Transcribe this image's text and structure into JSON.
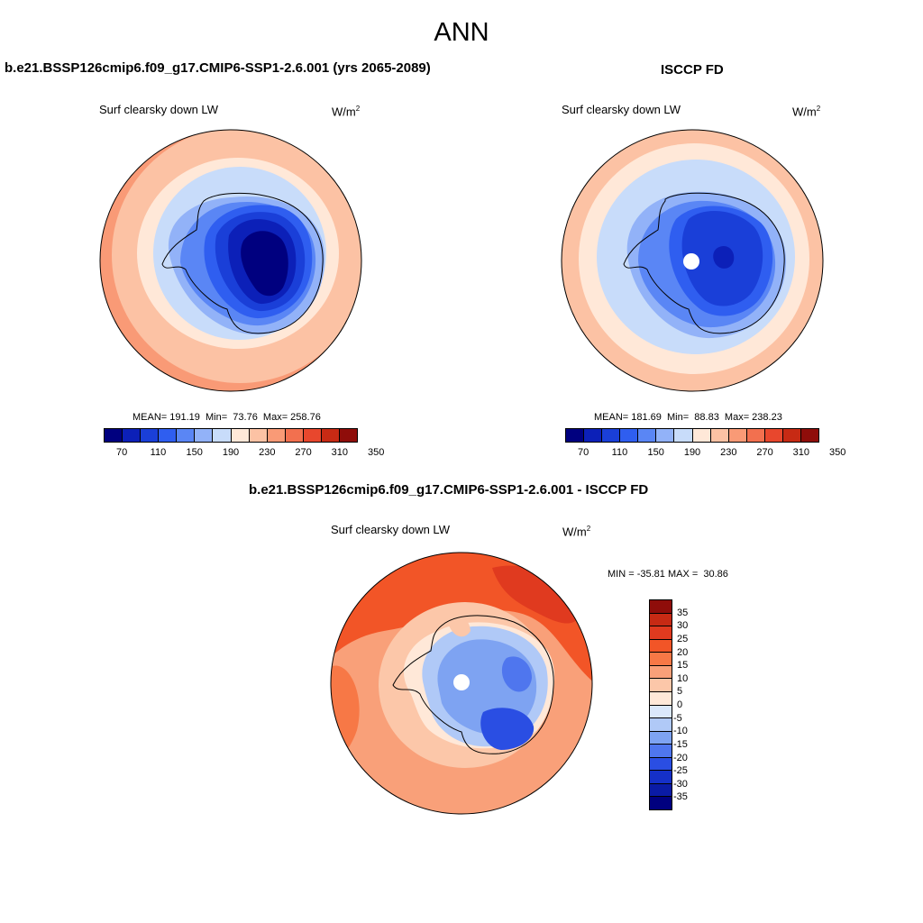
{
  "figure": {
    "title": "ANN"
  },
  "panels": [
    {
      "title": "b.e21.BSSP126cmip6.f09_g17.CMIP6-SSP1-2.6.001 (yrs 2065-2089)",
      "variable": "Surf clearsky down LW",
      "units_base": "W/m",
      "units_exp": "2",
      "stats": "MEAN= 191.19  Min=  73.76  Max= 258.76"
    },
    {
      "title": "ISCCP FD",
      "variable": "Surf clearsky down LW",
      "units_base": "W/m",
      "units_exp": "2",
      "stats": "MEAN= 181.69  Min=  88.83  Max= 238.23"
    },
    {
      "title": "b.e21.BSSP126cmip6.f09_g17.CMIP6-SSP1-2.6.001 - ISCCP FD",
      "variable": "Surf clearsky down LW",
      "units_base": "W/m",
      "units_exp": "2",
      "stats": "MIN = -35.81 MAX =  30.86"
    }
  ],
  "colorbar_abs": {
    "colors": [
      "#00007f",
      "#0c20b8",
      "#1a3fd8",
      "#2f5ef0",
      "#5a86f5",
      "#92b2f8",
      "#c8dcfa",
      "#ffe8d8",
      "#fcc2a4",
      "#f99a76",
      "#f2704f",
      "#e8472d",
      "#c72a14",
      "#8f0d0a"
    ],
    "tick_labels": [
      "70",
      "110",
      "150",
      "190",
      "230",
      "270",
      "310",
      "350"
    ]
  },
  "colorbar_diff": {
    "colors": [
      "#8f0d0a",
      "#c72a14",
      "#e03a1f",
      "#f25527",
      "#f77846",
      "#f9a079",
      "#fcc7a9",
      "#ffe8d8",
      "#dbe8fb",
      "#b0c9f7",
      "#7ea3f2",
      "#4f76ee",
      "#2a4ee3",
      "#1530c8",
      "#0a1ba6",
      "#00007f"
    ],
    "tick_labels": [
      "35",
      "30",
      "25",
      "20",
      "15",
      "10",
      "5",
      "0",
      "-5",
      "-10",
      "-15",
      "-20",
      "-25",
      "-30",
      "-35"
    ]
  }
}
